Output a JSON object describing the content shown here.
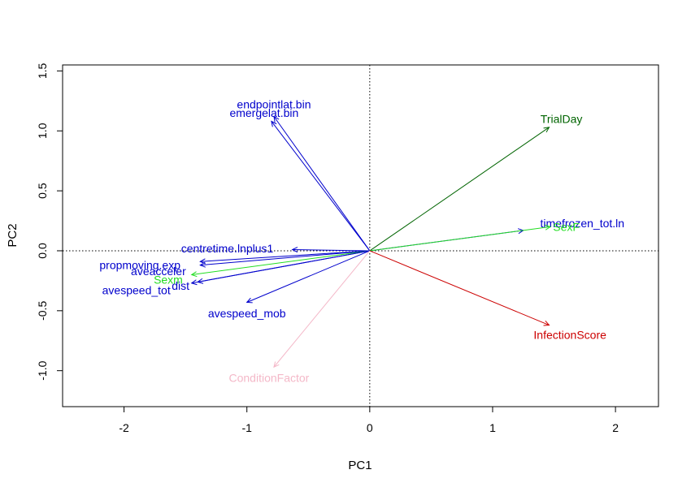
{
  "chart_data": {
    "type": "scatter",
    "subtype": "biplot",
    "title": "",
    "xlabel": "PC1",
    "ylabel": "PC2",
    "xlim": [
      -2.5,
      2.35
    ],
    "ylim": [
      -1.3,
      1.55
    ],
    "xticks": [
      -2,
      -1,
      0,
      1,
      2
    ],
    "yticks": [
      -1.0,
      -0.5,
      0.0,
      0.5,
      1.0,
      1.5
    ],
    "xtick_labels": [
      "-2",
      "-1",
      "0",
      "1",
      "2"
    ],
    "ytick_labels": [
      "-1.0",
      "-0.5",
      "0.0",
      "0.5",
      "1.0",
      "1.5"
    ],
    "reference_lines": {
      "x": 0,
      "y": 0,
      "style": "dotted"
    },
    "grid": false,
    "colors": {
      "blue": "#0000cc",
      "green": "#006400",
      "lightgreen": "#22dd22",
      "red": "#cc0000",
      "pink": "#f4b8c8"
    },
    "vectors": [
      {
        "label": "endpointlat.bin",
        "x": -0.78,
        "y": 1.12,
        "lx": -0.78,
        "ly": 1.22,
        "color": "#0000cc"
      },
      {
        "label": "emergelat.bin",
        "x": -0.8,
        "y": 1.08,
        "lx": -0.86,
        "ly": 1.15,
        "color": "#0000cc"
      },
      {
        "label": "TrialDay",
        "x": 1.46,
        "y": 1.03,
        "lx": 1.56,
        "ly": 1.1,
        "color": "#006400"
      },
      {
        "label": "timefrozen_tot.ln",
        "x": 1.25,
        "y": 0.17,
        "lx": 1.73,
        "ly": 0.23,
        "color": "#0000cc"
      },
      {
        "label": "SexF",
        "x": 1.47,
        "y": 0.2,
        "lx": 1.6,
        "ly": 0.2,
        "color": "#22dd22"
      },
      {
        "label": "centretime.lnplus1",
        "x": -0.63,
        "y": 0.01,
        "lx": -1.16,
        "ly": 0.02,
        "color": "#0000cc"
      },
      {
        "label": "propmoving.exp",
        "x": -1.38,
        "y": -0.09,
        "lx": -1.87,
        "ly": -0.12,
        "color": "#0000cc"
      },
      {
        "label": "aveacceler",
        "x": -1.38,
        "y": -0.12,
        "lx": -1.72,
        "ly": -0.17,
        "color": "#0000cc"
      },
      {
        "label": "Sexm",
        "x": -1.45,
        "y": -0.2,
        "lx": -1.64,
        "ly": -0.24,
        "color": "#22dd22"
      },
      {
        "label": "dist",
        "x": -1.4,
        "y": -0.26,
        "lx": -1.54,
        "ly": -0.29,
        "color": "#0000cc"
      },
      {
        "label": "avespeed_tot",
        "x": -1.45,
        "y": -0.27,
        "lx": -1.9,
        "ly": -0.33,
        "color": "#0000cc"
      },
      {
        "label": "avespeed_mob",
        "x": -1.0,
        "y": -0.43,
        "lx": -1.0,
        "ly": -0.52,
        "color": "#0000cc"
      },
      {
        "label": "InfectionScore",
        "x": 1.46,
        "y": -0.62,
        "lx": 1.63,
        "ly": -0.7,
        "color": "#cc0000"
      },
      {
        "label": "ConditionFactor",
        "x": -0.78,
        "y": -0.97,
        "lx": -0.82,
        "ly": -1.06,
        "color": "#f4b8c8"
      }
    ]
  }
}
